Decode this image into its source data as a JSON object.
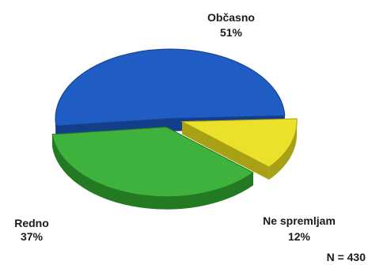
{
  "chart_data": {
    "type": "pie",
    "title": "",
    "slices": [
      {
        "label": "Občasno",
        "value": 51,
        "value_label": "51%",
        "color": "#1f5cc4",
        "side_color": "#143e8a"
      },
      {
        "label": "Ne spremljam",
        "value": 12,
        "value_label": "12%",
        "color": "#ebe12a",
        "side_color": "#a8a015"
      },
      {
        "label": "Redno",
        "value": 37,
        "value_label": "37%",
        "color": "#3fb23d",
        "side_color": "#247a22"
      }
    ],
    "exploded": [
      "Ne spremljam",
      "Redno"
    ],
    "note": "N = 430"
  }
}
